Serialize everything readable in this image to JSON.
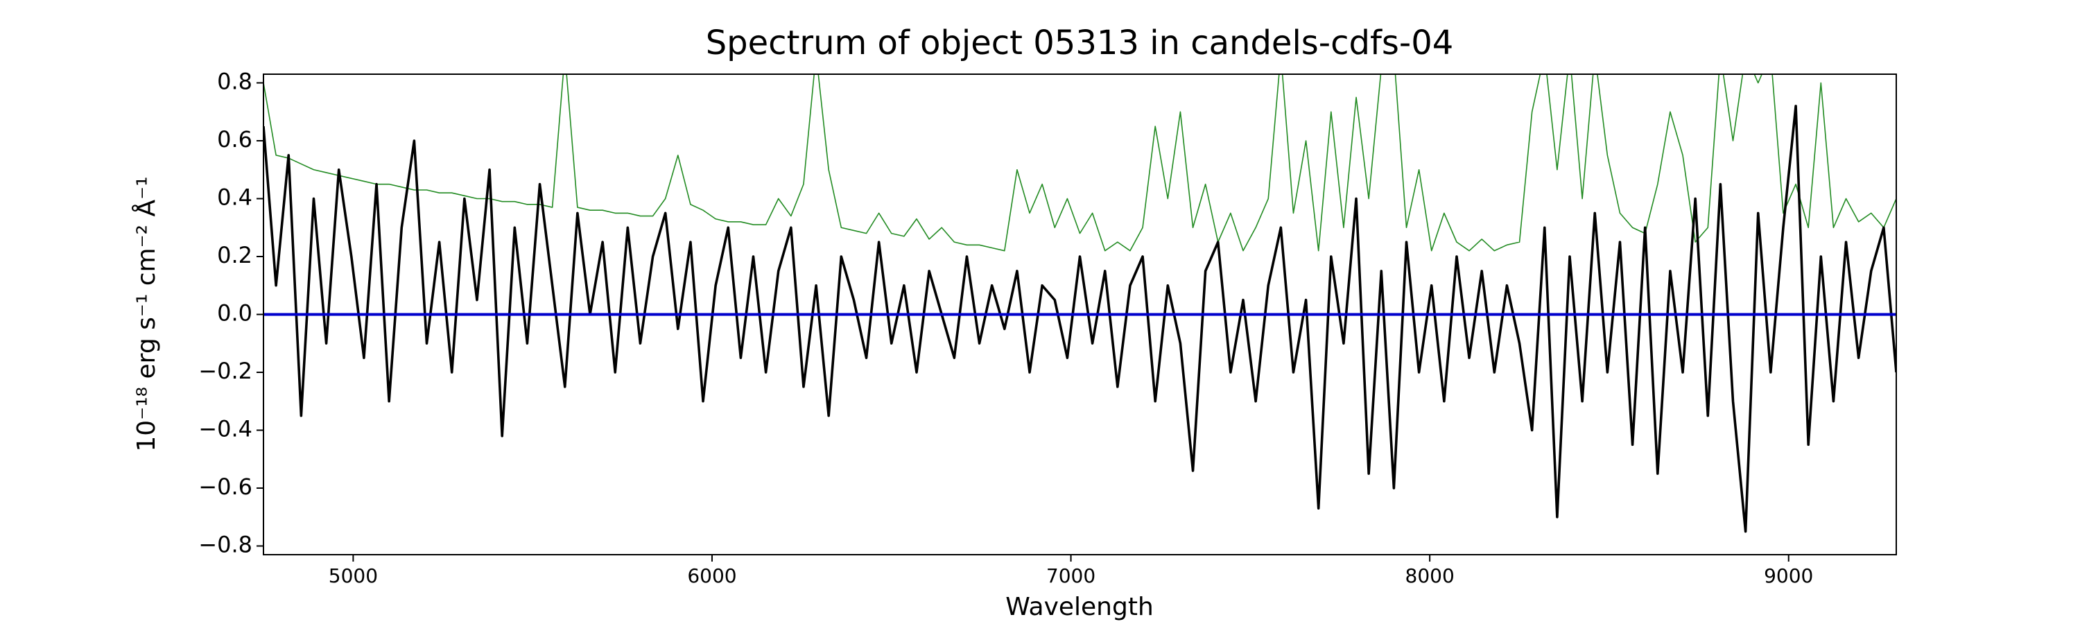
{
  "chart_data": {
    "type": "line",
    "title": "Spectrum of object 05313 in candels-cdfs-04",
    "xlabel": "Wavelength",
    "ylabel": "10⁻¹⁸ erg s⁻¹ cm⁻² Å⁻¹",
    "xlim": [
      4750,
      9300
    ],
    "ylim": [
      -0.83,
      0.83
    ],
    "xticks": [
      5000,
      6000,
      7000,
      8000,
      9000
    ],
    "yticks": [
      {
        "value": -0.8,
        "label": "−0.8"
      },
      {
        "value": -0.6,
        "label": "−0.6"
      },
      {
        "value": -0.4,
        "label": "−0.4"
      },
      {
        "value": -0.2,
        "label": "−0.2"
      },
      {
        "value": 0,
        "label": "0.0"
      },
      0.2,
      0.4,
      0.6,
      0.8
    ],
    "x": [
      4750,
      4785,
      4820,
      4855,
      4890,
      4925,
      4960,
      4995,
      5030,
      5065,
      5100,
      5135,
      5170,
      5205,
      5240,
      5275,
      5310,
      5345,
      5380,
      5415,
      5450,
      5485,
      5520,
      5555,
      5590,
      5625,
      5660,
      5695,
      5730,
      5765,
      5800,
      5835,
      5870,
      5905,
      5940,
      5975,
      6010,
      6045,
      6080,
      6115,
      6150,
      6185,
      6220,
      6255,
      6290,
      6325,
      6360,
      6395,
      6430,
      6465,
      6500,
      6535,
      6570,
      6605,
      6640,
      6675,
      6710,
      6745,
      6780,
      6815,
      6850,
      6885,
      6920,
      6955,
      6990,
      7025,
      7060,
      7095,
      7130,
      7165,
      7200,
      7235,
      7270,
      7305,
      7340,
      7375,
      7410,
      7445,
      7480,
      7515,
      7550,
      7585,
      7620,
      7655,
      7690,
      7725,
      7760,
      7795,
      7830,
      7865,
      7900,
      7935,
      7970,
      8005,
      8040,
      8075,
      8110,
      8145,
      8180,
      8215,
      8250,
      8285,
      8320,
      8355,
      8390,
      8425,
      8460,
      8495,
      8530,
      8565,
      8600,
      8635,
      8670,
      8705,
      8740,
      8775,
      8810,
      8845,
      8880,
      8915,
      8950,
      8985,
      9020,
      9055,
      9090,
      9125,
      9160,
      9195,
      9230,
      9265,
      9300
    ],
    "series": [
      {
        "color": "#228b22",
        "values": [
          0.8,
          0.55,
          0.54,
          0.52,
          0.5,
          0.49,
          0.48,
          0.47,
          0.46,
          0.45,
          0.45,
          0.44,
          0.43,
          0.43,
          0.42,
          0.42,
          0.41,
          0.4,
          0.4,
          0.39,
          0.39,
          0.38,
          0.38,
          0.37,
          0.9,
          0.37,
          0.36,
          0.36,
          0.35,
          0.35,
          0.34,
          0.34,
          0.4,
          0.55,
          0.38,
          0.36,
          0.33,
          0.32,
          0.32,
          0.31,
          0.31,
          0.4,
          0.34,
          0.45,
          0.9,
          0.5,
          0.3,
          0.29,
          0.28,
          0.35,
          0.28,
          0.27,
          0.33,
          0.26,
          0.3,
          0.25,
          0.24,
          0.24,
          0.23,
          0.22,
          0.5,
          0.35,
          0.45,
          0.3,
          0.4,
          0.28,
          0.35,
          0.22,
          0.25,
          0.22,
          0.3,
          0.65,
          0.4,
          0.7,
          0.3,
          0.45,
          0.25,
          0.35,
          0.22,
          0.3,
          0.4,
          0.9,
          0.35,
          0.6,
          0.22,
          0.7,
          0.3,
          0.75,
          0.4,
          0.85,
          0.9,
          0.3,
          0.5,
          0.22,
          0.35,
          0.25,
          0.22,
          0.26,
          0.22,
          0.24,
          0.25,
          0.7,
          0.9,
          0.5,
          0.9,
          0.4,
          0.9,
          0.55,
          0.35,
          0.3,
          0.28,
          0.45,
          0.7,
          0.55,
          0.25,
          0.3,
          0.9,
          0.6,
          0.9,
          0.8,
          0.9,
          0.35,
          0.45,
          0.3,
          0.8,
          0.3,
          0.4,
          0.32,
          0.35,
          0.3,
          0.4
        ]
      },
      {
        "color": "#000000",
        "values": [
          0.65,
          0.1,
          0.55,
          -0.35,
          0.4,
          -0.1,
          0.5,
          0.2,
          -0.15,
          0.45,
          -0.3,
          0.3,
          0.6,
          -0.1,
          0.25,
          -0.2,
          0.4,
          0.05,
          0.5,
          -0.42,
          0.3,
          -0.1,
          0.45,
          0.1,
          -0.25,
          0.35,
          0.0,
          0.25,
          -0.2,
          0.3,
          -0.1,
          0.2,
          0.35,
          -0.05,
          0.25,
          -0.3,
          0.1,
          0.3,
          -0.15,
          0.2,
          -0.2,
          0.15,
          0.3,
          -0.25,
          0.1,
          -0.35,
          0.2,
          0.05,
          -0.15,
          0.25,
          -0.1,
          0.1,
          -0.2,
          0.15,
          0.0,
          -0.15,
          0.2,
          -0.1,
          0.1,
          -0.05,
          0.15,
          -0.2,
          0.1,
          0.05,
          -0.15,
          0.2,
          -0.1,
          0.15,
          -0.25,
          0.1,
          0.2,
          -0.3,
          0.1,
          -0.1,
          -0.54,
          0.15,
          0.25,
          -0.2,
          0.05,
          -0.3,
          0.1,
          0.3,
          -0.2,
          0.05,
          -0.67,
          0.2,
          -0.1,
          0.4,
          -0.55,
          0.15,
          -0.6,
          0.25,
          -0.2,
          0.1,
          -0.3,
          0.2,
          -0.15,
          0.15,
          -0.2,
          0.1,
          -0.1,
          -0.4,
          0.3,
          -0.7,
          0.2,
          -0.3,
          0.35,
          -0.2,
          0.25,
          -0.45,
          0.3,
          -0.55,
          0.15,
          -0.2,
          0.4,
          -0.35,
          0.45,
          -0.3,
          -0.75,
          0.35,
          -0.2,
          0.3,
          0.72,
          -0.45,
          0.2,
          -0.3,
          0.25,
          -0.15,
          0.15,
          0.3,
          -0.2
        ]
      },
      {
        "color": "#0000cc",
        "values": [
          0,
          0,
          0,
          0,
          0,
          0,
          0,
          0,
          0,
          0,
          0,
          0,
          0,
          0,
          0,
          0,
          0,
          0,
          0,
          0,
          0,
          0,
          0,
          0,
          0,
          0,
          0,
          0,
          0,
          0,
          0,
          0,
          0,
          0,
          0,
          0,
          0,
          0,
          0,
          0,
          0,
          0,
          0,
          0,
          0,
          0,
          0,
          0,
          0,
          0,
          0,
          0,
          0,
          0,
          0,
          0,
          0,
          0,
          0,
          0,
          0,
          0,
          0,
          0,
          0,
          0,
          0,
          0,
          0,
          0,
          0,
          0,
          0,
          0,
          0,
          0,
          0,
          0,
          0,
          0,
          0,
          0,
          0,
          0,
          0,
          0,
          0,
          0,
          0,
          0,
          0,
          0,
          0,
          0,
          0,
          0,
          0,
          0,
          0,
          0,
          0,
          0,
          0,
          0,
          0,
          0,
          0,
          0,
          0,
          0,
          0,
          0,
          0,
          0,
          0,
          0,
          0,
          0,
          0,
          0,
          0,
          0,
          0,
          0,
          0,
          0,
          0,
          0,
          0,
          0,
          0
        ]
      }
    ]
  }
}
